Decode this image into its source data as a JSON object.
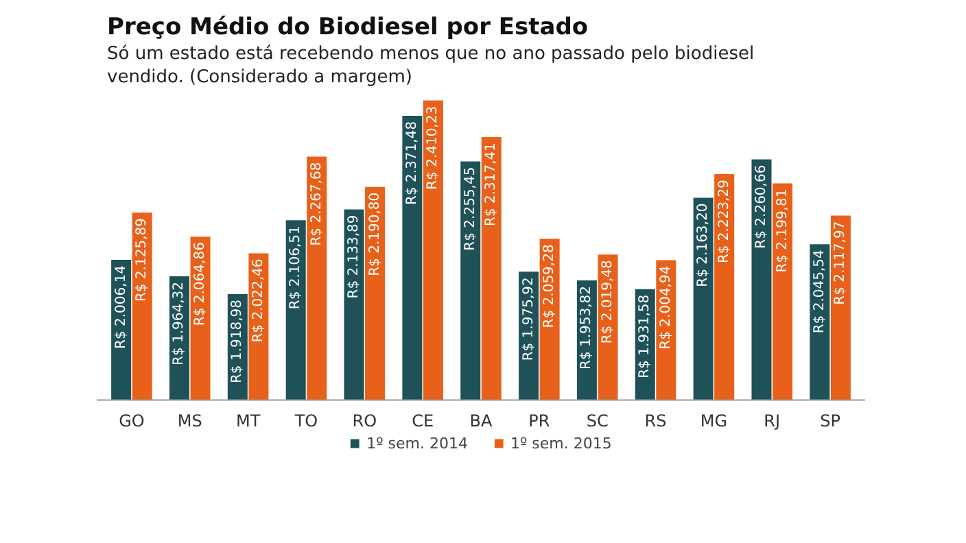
{
  "chart_data": {
    "type": "bar",
    "title": "Preço Médio do Biodiesel por Estado",
    "subtitle": "Só um estado está recebendo menos que no ano passado pelo biodiesel vendido. (Considerado a margem)",
    "categories": [
      "GO",
      "MS",
      "MT",
      "TO",
      "RO",
      "CE",
      "BA",
      "PR",
      "SC",
      "RS",
      "MG",
      "RJ",
      "SP"
    ],
    "series": [
      {
        "name": "1º sem. 2014",
        "color": "#1f5159",
        "values": [
          2006.14,
          1964.32,
          1918.98,
          2106.51,
          2133.89,
          2371.48,
          2255.45,
          1975.92,
          1953.82,
          1931.58,
          2163.2,
          2260.66,
          2045.54
        ],
        "value_labels": [
          "R$ 2.006,14",
          "R$ 1.964,32",
          "R$ 1.918,98",
          "R$ 2.106,51",
          "R$ 2.133,89",
          "R$ 2.371,48",
          "R$ 2.255,45",
          "R$ 1.975,92",
          "R$ 1.953,82",
          "R$ 1.931,58",
          "R$ 2.163,20",
          "R$ 2.260,66",
          "R$ 2.045,54"
        ]
      },
      {
        "name": "1º sem. 2015",
        "color": "#e8611a",
        "values": [
          2125.89,
          2064.86,
          2022.46,
          2267.68,
          2190.8,
          2410.23,
          2317.41,
          2059.28,
          2019.48,
          2004.94,
          2223.29,
          2199.81,
          2117.97
        ],
        "value_labels": [
          "R$ 2.125,89",
          "R$ 2.064,86",
          "R$ 2.022,46",
          "R$ 2.267,68",
          "R$ 2.190,80",
          "R$ 2.410,23",
          "R$ 2.317,41",
          "R$ 2.059,28",
          "R$ 2.019,48",
          "R$ 2.004,94",
          "R$ 2.223,29",
          "R$ 2.199,81",
          "R$ 2.117,97"
        ]
      }
    ],
    "ylim": [
      1650,
      2420
    ],
    "tick_labels": "x",
    "grid": false,
    "legend": "bottom"
  }
}
